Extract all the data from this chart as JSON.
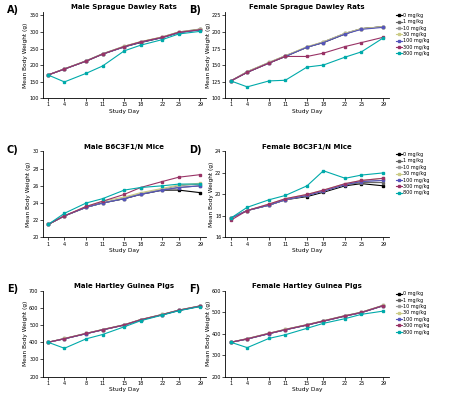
{
  "study_days": [
    1,
    4,
    8,
    11,
    15,
    18,
    22,
    25,
    29
  ],
  "legend_labels": [
    "0 mg/kg",
    "1 mg/kg",
    "10 mg/kg",
    "30 mg/kg",
    "100 mg/kg",
    "300 mg/kg",
    "800 mg/kg"
  ],
  "colors": [
    "#000000",
    "#666666",
    "#999999",
    "#cccc88",
    "#5555bb",
    "#993366",
    "#00aaaa"
  ],
  "panels": [
    {
      "label": "A)",
      "title": "Male Sprague Dawley Rats",
      "ylabel": "Mean Body Weight (g)",
      "xlabel": "Study Day",
      "ylim": [
        100,
        360
      ],
      "yticks": [
        100,
        150,
        200,
        250,
        300,
        350
      ],
      "data": [
        [
          170,
          188,
          212,
          233,
          255,
          268,
          283,
          298,
          308
        ],
        [
          170,
          188,
          213,
          234,
          257,
          270,
          285,
          300,
          309
        ],
        [
          170,
          188,
          212,
          233,
          256,
          270,
          284,
          299,
          307
        ],
        [
          170,
          189,
          213,
          234,
          257,
          271,
          285,
          300,
          308
        ],
        [
          170,
          188,
          212,
          233,
          255,
          269,
          283,
          298,
          306
        ],
        [
          170,
          188,
          212,
          233,
          256,
          270,
          284,
          299,
          307
        ],
        [
          170,
          149,
          175,
          197,
          243,
          260,
          277,
          294,
          302
        ]
      ]
    },
    {
      "label": "B)",
      "title": "Female Sprague Dawley Rats",
      "ylabel": "Mean Body Weight (g)",
      "xlabel": "Study Day",
      "ylim": [
        100,
        230
      ],
      "yticks": [
        100,
        125,
        150,
        175,
        200,
        225
      ],
      "data": [
        [
          126,
          139,
          153,
          163,
          177,
          184,
          197,
          205,
          208
        ],
        [
          126,
          140,
          154,
          164,
          177,
          185,
          198,
          205,
          208
        ],
        [
          126,
          140,
          153,
          164,
          177,
          185,
          198,
          205,
          208
        ],
        [
          126,
          140,
          154,
          164,
          178,
          185,
          198,
          205,
          208
        ],
        [
          126,
          139,
          153,
          163,
          177,
          184,
          197,
          204,
          207
        ],
        [
          126,
          139,
          153,
          163,
          163,
          168,
          178,
          184,
          192
        ],
        [
          126,
          117,
          126,
          127,
          147,
          150,
          162,
          170,
          191
        ]
      ]
    },
    {
      "label": "C)",
      "title": "Male B6C3F1/N Mice",
      "ylabel": "Mean Body Weight (g)",
      "xlabel": "Study Day",
      "ylim": [
        20,
        30
      ],
      "yticks": [
        20,
        22,
        24,
        26,
        28,
        30
      ],
      "data": [
        [
          21.5,
          22.5,
          23.5,
          24.0,
          24.5,
          25.0,
          25.5,
          25.5,
          25.2
        ],
        [
          21.5,
          22.5,
          23.5,
          24.0,
          24.5,
          25.0,
          25.5,
          25.8,
          26.0
        ],
        [
          21.5,
          22.5,
          23.5,
          24.0,
          24.6,
          25.1,
          25.6,
          26.0,
          26.2
        ],
        [
          21.5,
          22.5,
          23.6,
          24.2,
          24.7,
          25.2,
          25.7,
          26.1,
          26.3
        ],
        [
          21.5,
          22.5,
          23.5,
          24.0,
          24.5,
          25.0,
          25.5,
          25.8,
          26.0
        ],
        [
          21.5,
          22.5,
          23.6,
          24.2,
          25.0,
          25.8,
          26.5,
          27.0,
          27.3
        ],
        [
          21.5,
          22.8,
          24.0,
          24.5,
          25.5,
          25.8,
          26.0,
          26.2,
          26.2
        ]
      ]
    },
    {
      "label": "D)",
      "title": "Female B6C3F1/N Mice",
      "ylabel": "Mean Body Weight (g)",
      "xlabel": "Study Day",
      "ylim": [
        16,
        24
      ],
      "yticks": [
        16,
        18,
        20,
        22,
        24
      ],
      "data": [
        [
          17.8,
          18.5,
          19.0,
          19.5,
          19.8,
          20.2,
          20.8,
          21.0,
          20.8
        ],
        [
          17.8,
          18.5,
          19.0,
          19.5,
          19.9,
          20.3,
          20.9,
          21.1,
          21.1
        ],
        [
          17.8,
          18.5,
          19.0,
          19.5,
          19.9,
          20.3,
          20.9,
          21.2,
          21.3
        ],
        [
          17.8,
          18.5,
          19.1,
          19.6,
          20.0,
          20.4,
          21.0,
          21.3,
          21.5
        ],
        [
          17.8,
          18.5,
          19.0,
          19.5,
          19.9,
          20.3,
          20.9,
          21.2,
          21.3
        ],
        [
          17.6,
          18.5,
          19.1,
          19.6,
          20.0,
          20.4,
          21.0,
          21.3,
          21.5
        ],
        [
          17.8,
          18.8,
          19.5,
          19.9,
          20.8,
          22.2,
          21.5,
          21.8,
          22.0
        ]
      ]
    },
    {
      "label": "E)",
      "title": "Male Hartley Guinea Pigs",
      "ylabel": "Mean Body Weight (g)",
      "xlabel": "Study Day",
      "ylim": [
        200,
        700
      ],
      "yticks": [
        200,
        300,
        400,
        500,
        600,
        700
      ],
      "data": [
        [
          400,
          420,
          450,
          472,
          500,
          530,
          560,
          585,
          610
        ],
        [
          400,
          422,
          452,
          474,
          502,
          532,
          562,
          587,
          612
        ],
        [
          400,
          421,
          451,
          473,
          501,
          531,
          561,
          586,
          611
        ],
        [
          400,
          422,
          452,
          474,
          502,
          532,
          562,
          587,
          612
        ],
        [
          400,
          420,
          450,
          472,
          500,
          530,
          560,
          585,
          610
        ],
        [
          400,
          421,
          451,
          473,
          501,
          531,
          561,
          586,
          611
        ],
        [
          400,
          365,
          420,
          445,
          490,
          525,
          558,
          583,
          608
        ]
      ]
    },
    {
      "label": "F)",
      "title": "Female Hartley Guinea Pigs",
      "ylabel": "Mean Body Weight (g)",
      "xlabel": "Study Day",
      "ylim": [
        200,
        600
      ],
      "yticks": [
        200,
        300,
        400,
        500,
        600
      ],
      "data": [
        [
          360,
          375,
          400,
          418,
          440,
          458,
          482,
          498,
          530
        ],
        [
          360,
          377,
          402,
          420,
          442,
          460,
          484,
          500,
          532
        ],
        [
          360,
          376,
          401,
          419,
          441,
          459,
          483,
          499,
          531
        ],
        [
          360,
          377,
          402,
          420,
          442,
          460,
          484,
          500,
          532
        ],
        [
          360,
          375,
          400,
          418,
          440,
          458,
          482,
          498,
          530
        ],
        [
          360,
          376,
          401,
          419,
          441,
          459,
          483,
          499,
          531
        ],
        [
          360,
          335,
          378,
          395,
          425,
          448,
          470,
          490,
          505
        ]
      ]
    }
  ]
}
